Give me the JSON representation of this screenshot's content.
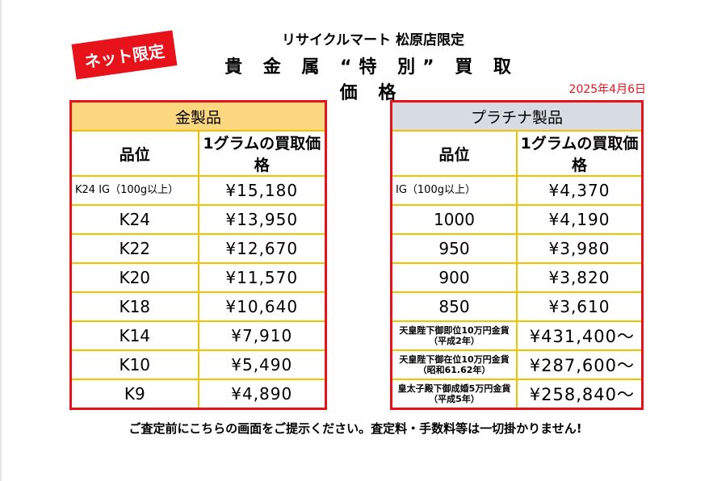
{
  "badge": "ネット限定",
  "store": "リサイクルマート 松原店限定",
  "title": "貴 金 属 “特 別” 買 取 価 格",
  "date": "2025年4月6日",
  "gold": {
    "header": "金製品",
    "col1": "品位",
    "col2": "1グラムの買取価格",
    "rows": [
      {
        "grade": "K24 IG（100g以上）",
        "price": "¥15,180"
      },
      {
        "grade": "K24",
        "price": "¥13,950"
      },
      {
        "grade": "K22",
        "price": "¥12,670"
      },
      {
        "grade": "K20",
        "price": "¥11,570"
      },
      {
        "grade": "K18",
        "price": "¥10,640"
      },
      {
        "grade": "K14",
        "price": "¥7,910"
      },
      {
        "grade": "K10",
        "price": "¥5,490"
      },
      {
        "grade": "K9",
        "price": "¥4,890"
      }
    ]
  },
  "platinum": {
    "header": "プラチナ製品",
    "col1": "品位",
    "col2": "1グラムの買取価格",
    "rows": [
      {
        "grade": "IG（100g以上）",
        "price": "¥4,370"
      },
      {
        "grade": "1000",
        "price": "¥4,190"
      },
      {
        "grade": "950",
        "price": "¥3,980"
      },
      {
        "grade": "900",
        "price": "¥3,820"
      },
      {
        "grade": "850",
        "price": "¥3,610"
      },
      {
        "grade": "天皇陛下御即位10万円金貨（平成2年）",
        "price": "¥431,400〜"
      },
      {
        "grade": "天皇陛下御在位10万円金貨（昭和61.62年）",
        "price": "¥287,600〜"
      },
      {
        "grade": "皇太子殿下御成婚5万円金貨（平成5年）",
        "price": "¥258,840〜"
      }
    ]
  },
  "footer": "ご査定前にこちらの画面をご提示ください。査定料・手数料等は一切掛かりません!"
}
